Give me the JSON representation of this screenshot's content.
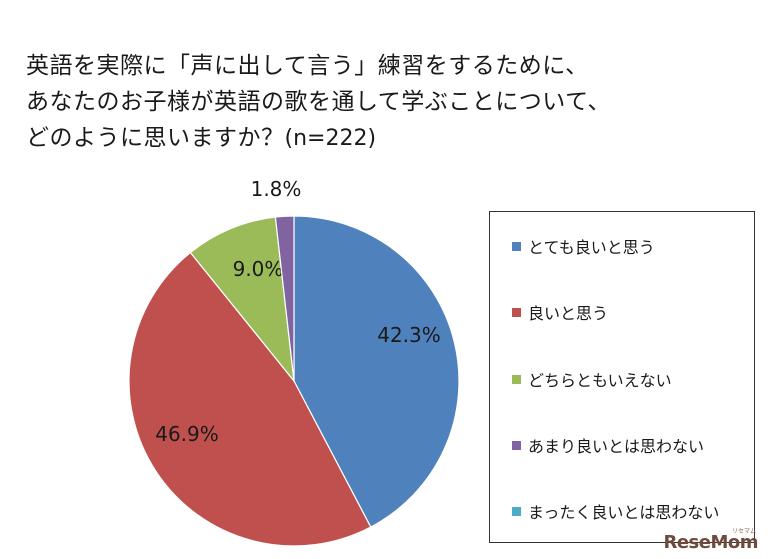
{
  "chart_data": {
    "type": "pie",
    "title_lines": [
      "英語を実際に「声に出して言う」練習をするために、",
      "あなたのお子様が英語の歌を通して学ぶことについて、",
      "どのように思いますか？"
    ],
    "subtitle": "(n=222)",
    "slices": [
      {
        "label": "とても良いと思う",
        "value": 42.3,
        "display": "42.3%",
        "color": "#4F81BD"
      },
      {
        "label": "良いと思う",
        "value": 46.9,
        "display": "46.9%",
        "color": "#C0504D"
      },
      {
        "label": "どちらともいえない",
        "value": 9.0,
        "display": "9.0%",
        "color": "#9BBB59"
      },
      {
        "label": "あまり良いとは思わない",
        "value": 1.8,
        "display": "1.8%",
        "color": "#8064A2"
      },
      {
        "label": "まったく良いとは思わない",
        "value": 0.0,
        "display": "",
        "color": "#4BACC6"
      }
    ],
    "legend_position": "right",
    "start": "12 o'clock, clockwise"
  },
  "watermark": {
    "text": "ReseMom",
    "small": "リセマム"
  }
}
